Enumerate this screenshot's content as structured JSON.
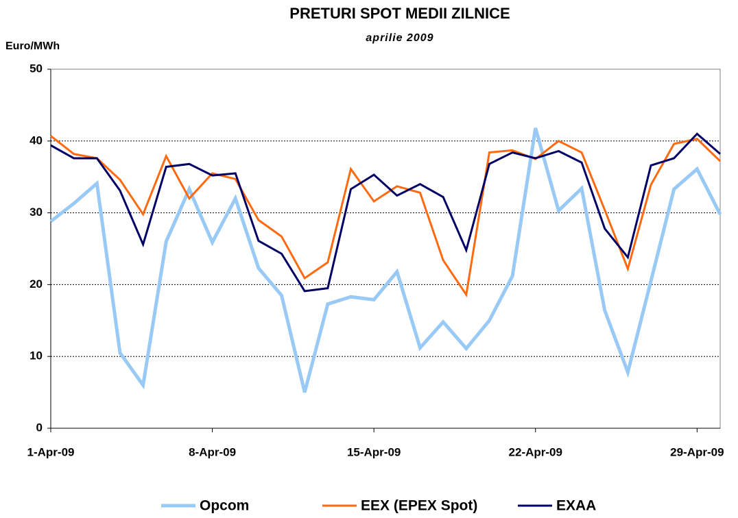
{
  "chart_data": {
    "type": "line",
    "title": "PRETURI SPOT MEDII ZILNICE",
    "subtitle": "aprilie 2009",
    "y_label": "Euro/MWh",
    "categories": [
      "1-Apr-09",
      null,
      null,
      null,
      null,
      null,
      null,
      "8-Apr-09",
      null,
      null,
      null,
      null,
      null,
      null,
      "15-Apr-09",
      null,
      null,
      null,
      null,
      null,
      null,
      "22-Apr-09",
      null,
      null,
      null,
      null,
      null,
      null,
      "29-Apr-09",
      null
    ],
    "series": [
      {
        "name": "Opcom",
        "color": "#99c9f5",
        "values": [
          28.8,
          31.3,
          34.1,
          10.5,
          6.0,
          26.0,
          33.3,
          25.9,
          32.0,
          22.3,
          18.5,
          5.0,
          17.3,
          18.3,
          17.9,
          21.8,
          11.2,
          14.8,
          11.1,
          15.0,
          21.2,
          41.8,
          30.3,
          33.4,
          16.4,
          7.8,
          20.5,
          33.3,
          36.1,
          29.8
        ]
      },
      {
        "name": "EEX (EPEX Spot)",
        "color": "#ff6a10",
        "values": [
          40.7,
          38.2,
          37.6,
          34.6,
          29.8,
          37.9,
          32.0,
          35.5,
          34.7,
          29.0,
          26.7,
          20.9,
          23.1,
          36.1,
          31.6,
          33.7,
          32.8,
          23.4,
          18.6,
          38.4,
          38.7,
          37.5,
          40.0,
          38.4,
          30.4,
          22.2,
          33.9,
          39.6,
          40.3,
          37.2
        ]
      },
      {
        "name": "EXAA",
        "color": "#000066",
        "values": [
          39.4,
          37.6,
          37.6,
          33.1,
          25.6,
          36.4,
          36.8,
          35.2,
          35.5,
          26.1,
          24.3,
          19.1,
          19.5,
          33.3,
          35.3,
          32.4,
          34.0,
          32.2,
          24.8,
          36.8,
          38.4,
          37.6,
          38.6,
          37.0,
          27.8,
          23.8,
          36.6,
          37.6,
          41.0,
          38.2
        ]
      }
    ],
    "ylim": [
      0,
      50
    ],
    "yticks": [
      0,
      10,
      20,
      30,
      40,
      50
    ],
    "grid": true,
    "legend": "bottom"
  }
}
